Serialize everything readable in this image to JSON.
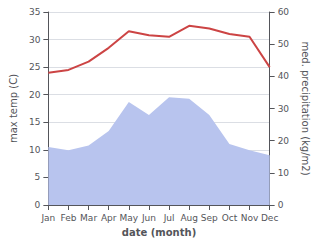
{
  "chart_data": {
    "type": "line",
    "xlabel": "date (month)",
    "ylabel": "max temp (C)",
    "y2label": "med. precipitation (kg/m2)",
    "categories": [
      "Jan",
      "Feb",
      "Mar",
      "Apr",
      "May",
      "Jun",
      "Jul",
      "Aug",
      "Sep",
      "Oct",
      "Nov",
      "Dec"
    ],
    "series": [
      {
        "type": "area",
        "axis": "y2",
        "color": "#b8c4ee",
        "values": [
          18.0,
          17.0,
          18.5,
          23.0,
          32.0,
          28.0,
          33.5,
          33.0,
          28.0,
          19.0,
          17.0,
          15.5
        ]
      },
      {
        "type": "line",
        "color": "#cc4444",
        "values": [
          24.0,
          24.5,
          26.0,
          28.5,
          31.5,
          30.8,
          30.5,
          32.5,
          32.0,
          31.0,
          30.5,
          25.0
        ]
      }
    ],
    "ylim": [
      0,
      35
    ],
    "yticks": [
      0,
      5,
      10,
      15,
      20,
      25,
      30,
      35
    ],
    "y2lim": [
      0,
      60
    ],
    "y2ticks": [
      0,
      10,
      20,
      30,
      40,
      50,
      60
    ],
    "grid": true
  }
}
